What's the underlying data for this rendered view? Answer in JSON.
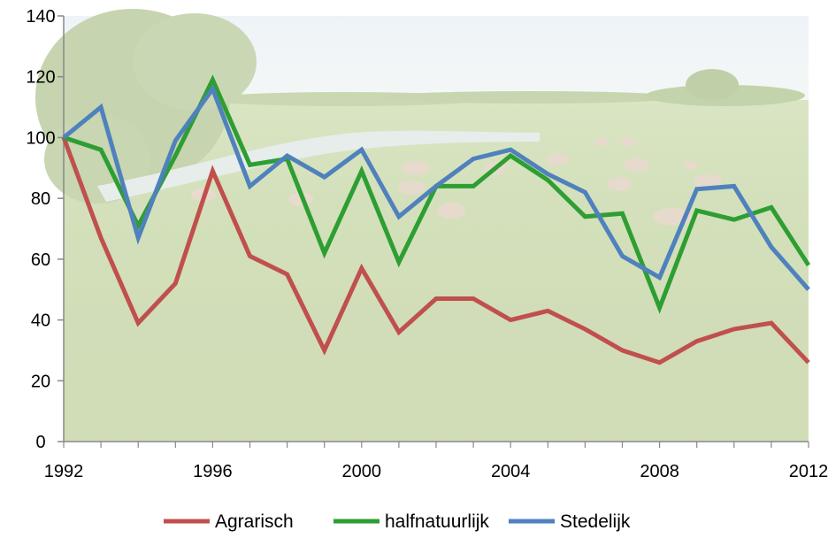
{
  "chart_data": {
    "type": "line",
    "title": "",
    "xlabel": "",
    "ylabel": "",
    "x": [
      1992,
      1993,
      1994,
      1995,
      1996,
      1997,
      1998,
      1999,
      2000,
      2001,
      2002,
      2003,
      2004,
      2005,
      2006,
      2007,
      2008,
      2009,
      2010,
      2011,
      2012
    ],
    "xticks": [
      1992,
      1996,
      2000,
      2004,
      2008,
      2012
    ],
    "yticks": [
      0,
      20,
      40,
      60,
      80,
      100,
      120,
      140
    ],
    "xlim": [
      1992,
      2012
    ],
    "ylim": [
      0,
      140
    ],
    "grid": false,
    "legend_position": "bottom",
    "background": "photo of a green meadow with grazing cows, river and trees, faded",
    "series": [
      {
        "name": "Agrarisch",
        "color": "#c0504d",
        "values": [
          100,
          67,
          39,
          52,
          89,
          61,
          55,
          30,
          57,
          36,
          47,
          47,
          40,
          43,
          37,
          30,
          26,
          33,
          37,
          39,
          26
        ]
      },
      {
        "name": "halfnatuurlijk",
        "color": "#2e9e32",
        "values": [
          100,
          96,
          71,
          94,
          119,
          91,
          93,
          62,
          89,
          59,
          84,
          84,
          94,
          86,
          74,
          75,
          44,
          76,
          73,
          77,
          58
        ]
      },
      {
        "name": "Stedelijk",
        "color": "#4f81bd",
        "values": [
          100,
          110,
          67,
          99,
          116,
          84,
          94,
          87,
          96,
          74,
          84,
          93,
          96,
          88,
          82,
          61,
          54,
          83,
          84,
          64,
          50
        ]
      }
    ]
  }
}
